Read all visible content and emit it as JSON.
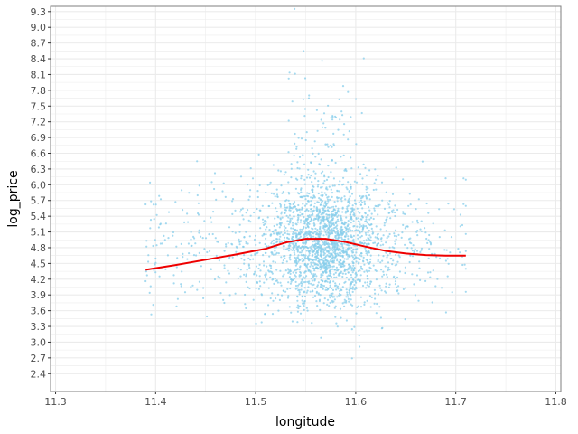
{
  "chart_data": {
    "type": "scatter",
    "xlabel": "longitude",
    "ylabel": "log_price",
    "xlim": [
      11.295,
      11.805
    ],
    "ylim": [
      2.06,
      9.4
    ],
    "x_ticks": [
      11.3,
      11.4,
      11.5,
      11.6,
      11.7,
      11.8
    ],
    "x_tick_labels": [
      "11.3",
      "11.4",
      "11.5",
      "11.6",
      "11.7",
      "11.8"
    ],
    "y_ticks": [
      2.4,
      2.7,
      3.0,
      3.3,
      3.6,
      3.9,
      4.2,
      4.5,
      4.8,
      5.1,
      5.4,
      5.7,
      6.0,
      6.3,
      6.6,
      6.9,
      7.2,
      7.5,
      7.8,
      8.1,
      8.4,
      8.7,
      9.0,
      9.3
    ],
    "y_tick_labels": [
      "2.4",
      "2.7",
      "3.0",
      "3.3",
      "3.6",
      "3.9",
      "4.2",
      "4.5",
      "4.8",
      "5.1",
      "5.4",
      "5.7",
      "6.0",
      "6.3",
      "6.6",
      "6.9",
      "7.2",
      "7.5",
      "7.8",
      "8.1",
      "8.4",
      "8.7",
      "9.0",
      "9.3"
    ],
    "grid": true,
    "point_color": "#87ceeb",
    "smooth_color": "#ee0000",
    "panel_border_color": "#7f7f7f",
    "grid_color": "#ebebeb",
    "scatter_summary": {
      "n_points_approx": 2500,
      "x_range": [
        11.39,
        11.71
      ],
      "x_center": 11.57,
      "y_center": 4.85,
      "y_range": [
        2.3,
        9.35
      ]
    },
    "smooth_line": {
      "x": [
        11.39,
        11.42,
        11.45,
        11.48,
        11.51,
        11.53,
        11.55,
        11.57,
        11.59,
        11.61,
        11.63,
        11.65,
        11.67,
        11.69,
        11.71
      ],
      "y": [
        4.38,
        4.47,
        4.57,
        4.67,
        4.78,
        4.9,
        4.97,
        4.97,
        4.91,
        4.82,
        4.74,
        4.69,
        4.66,
        4.65,
        4.65
      ]
    }
  }
}
